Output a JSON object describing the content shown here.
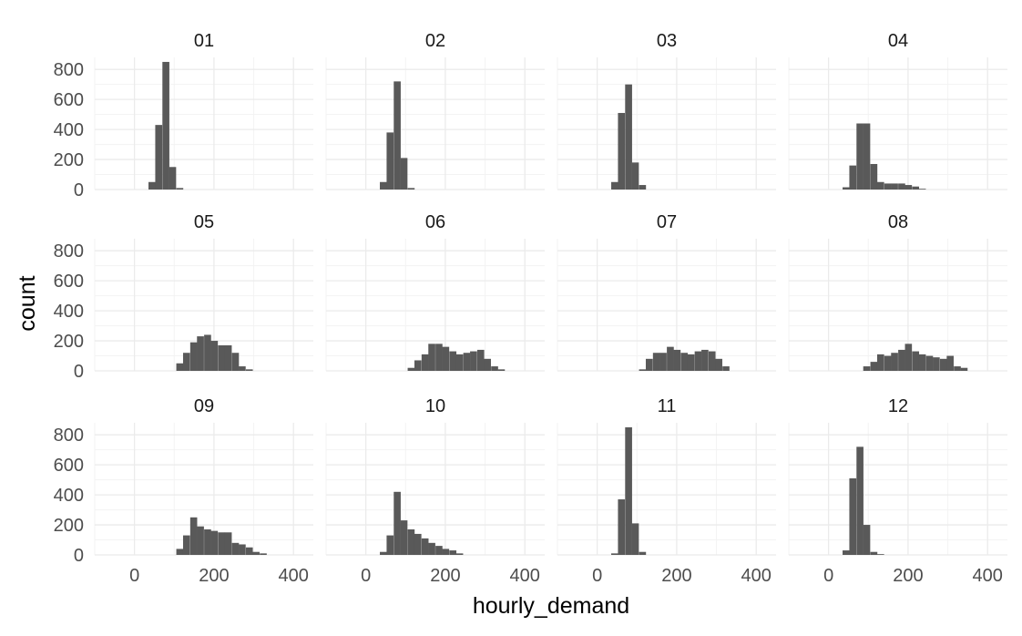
{
  "chart_data": {
    "type": "bar",
    "subtype": "faceted-histogram",
    "title": "",
    "xlabel": "hourly_demand",
    "ylabel": "count",
    "xlim": [
      -100,
      450
    ],
    "ylim": [
      0,
      880
    ],
    "x_ticks": [
      0,
      200,
      400
    ],
    "y_ticks": [
      0,
      200,
      400,
      600,
      800
    ],
    "bin_width": 17.5,
    "grid": true,
    "facets": [
      {
        "label": "01",
        "bins": [
          {
            "x": 44,
            "count": 50
          },
          {
            "x": 61,
            "count": 430
          },
          {
            "x": 79,
            "count": 850
          },
          {
            "x": 96,
            "count": 150
          },
          {
            "x": 114,
            "count": 10
          }
        ]
      },
      {
        "label": "02",
        "bins": [
          {
            "x": 44,
            "count": 50
          },
          {
            "x": 61,
            "count": 380
          },
          {
            "x": 79,
            "count": 720
          },
          {
            "x": 96,
            "count": 210
          },
          {
            "x": 114,
            "count": 10
          }
        ]
      },
      {
        "label": "03",
        "bins": [
          {
            "x": 44,
            "count": 50
          },
          {
            "x": 61,
            "count": 510
          },
          {
            "x": 79,
            "count": 700
          },
          {
            "x": 96,
            "count": 180
          },
          {
            "x": 114,
            "count": 30
          }
        ]
      },
      {
        "label": "04",
        "bins": [
          {
            "x": 44,
            "count": 15
          },
          {
            "x": 61,
            "count": 160
          },
          {
            "x": 79,
            "count": 440
          },
          {
            "x": 96,
            "count": 440
          },
          {
            "x": 114,
            "count": 170
          },
          {
            "x": 131,
            "count": 50
          },
          {
            "x": 149,
            "count": 40
          },
          {
            "x": 166,
            "count": 40
          },
          {
            "x": 184,
            "count": 40
          },
          {
            "x": 201,
            "count": 30
          },
          {
            "x": 219,
            "count": 20
          },
          {
            "x": 236,
            "count": 5
          }
        ]
      },
      {
        "label": "05",
        "bins": [
          {
            "x": 114,
            "count": 50
          },
          {
            "x": 131,
            "count": 120
          },
          {
            "x": 149,
            "count": 190
          },
          {
            "x": 166,
            "count": 230
          },
          {
            "x": 184,
            "count": 240
          },
          {
            "x": 201,
            "count": 200
          },
          {
            "x": 219,
            "count": 170
          },
          {
            "x": 236,
            "count": 170
          },
          {
            "x": 254,
            "count": 120
          },
          {
            "x": 271,
            "count": 30
          },
          {
            "x": 289,
            "count": 10
          }
        ]
      },
      {
        "label": "06",
        "bins": [
          {
            "x": 114,
            "count": 20
          },
          {
            "x": 131,
            "count": 70
          },
          {
            "x": 149,
            "count": 110
          },
          {
            "x": 166,
            "count": 180
          },
          {
            "x": 184,
            "count": 180
          },
          {
            "x": 201,
            "count": 160
          },
          {
            "x": 219,
            "count": 130
          },
          {
            "x": 236,
            "count": 110
          },
          {
            "x": 254,
            "count": 120
          },
          {
            "x": 271,
            "count": 130
          },
          {
            "x": 289,
            "count": 140
          },
          {
            "x": 306,
            "count": 80
          },
          {
            "x": 324,
            "count": 30
          },
          {
            "x": 341,
            "count": 10
          }
        ]
      },
      {
        "label": "07",
        "bins": [
          {
            "x": 114,
            "count": 10
          },
          {
            "x": 131,
            "count": 80
          },
          {
            "x": 149,
            "count": 120
          },
          {
            "x": 166,
            "count": 120
          },
          {
            "x": 184,
            "count": 160
          },
          {
            "x": 201,
            "count": 140
          },
          {
            "x": 219,
            "count": 120
          },
          {
            "x": 236,
            "count": 110
          },
          {
            "x": 254,
            "count": 130
          },
          {
            "x": 271,
            "count": 140
          },
          {
            "x": 289,
            "count": 130
          },
          {
            "x": 306,
            "count": 80
          },
          {
            "x": 324,
            "count": 30
          }
        ]
      },
      {
        "label": "08",
        "bins": [
          {
            "x": 96,
            "count": 30
          },
          {
            "x": 114,
            "count": 60
          },
          {
            "x": 131,
            "count": 110
          },
          {
            "x": 149,
            "count": 100
          },
          {
            "x": 166,
            "count": 120
          },
          {
            "x": 184,
            "count": 140
          },
          {
            "x": 201,
            "count": 180
          },
          {
            "x": 219,
            "count": 130
          },
          {
            "x": 236,
            "count": 110
          },
          {
            "x": 254,
            "count": 100
          },
          {
            "x": 271,
            "count": 90
          },
          {
            "x": 289,
            "count": 80
          },
          {
            "x": 306,
            "count": 100
          },
          {
            "x": 324,
            "count": 30
          },
          {
            "x": 341,
            "count": 20
          }
        ]
      },
      {
        "label": "09",
        "bins": [
          {
            "x": 114,
            "count": 40
          },
          {
            "x": 131,
            "count": 130
          },
          {
            "x": 149,
            "count": 250
          },
          {
            "x": 166,
            "count": 190
          },
          {
            "x": 184,
            "count": 170
          },
          {
            "x": 201,
            "count": 160
          },
          {
            "x": 219,
            "count": 150
          },
          {
            "x": 236,
            "count": 150
          },
          {
            "x": 254,
            "count": 80
          },
          {
            "x": 271,
            "count": 70
          },
          {
            "x": 289,
            "count": 50
          },
          {
            "x": 306,
            "count": 20
          },
          {
            "x": 324,
            "count": 10
          }
        ]
      },
      {
        "label": "10",
        "bins": [
          {
            "x": 44,
            "count": 20
          },
          {
            "x": 61,
            "count": 130
          },
          {
            "x": 79,
            "count": 420
          },
          {
            "x": 96,
            "count": 230
          },
          {
            "x": 114,
            "count": 170
          },
          {
            "x": 131,
            "count": 140
          },
          {
            "x": 149,
            "count": 110
          },
          {
            "x": 166,
            "count": 80
          },
          {
            "x": 184,
            "count": 60
          },
          {
            "x": 201,
            "count": 40
          },
          {
            "x": 219,
            "count": 30
          },
          {
            "x": 236,
            "count": 10
          }
        ]
      },
      {
        "label": "11",
        "bins": [
          {
            "x": 44,
            "count": 10
          },
          {
            "x": 61,
            "count": 370
          },
          {
            "x": 79,
            "count": 850
          },
          {
            "x": 96,
            "count": 210
          },
          {
            "x": 114,
            "count": 20
          }
        ]
      },
      {
        "label": "12",
        "bins": [
          {
            "x": 44,
            "count": 30
          },
          {
            "x": 61,
            "count": 510
          },
          {
            "x": 79,
            "count": 720
          },
          {
            "x": 96,
            "count": 200
          },
          {
            "x": 114,
            "count": 20
          },
          {
            "x": 131,
            "count": 5
          }
        ]
      }
    ]
  },
  "colors": {
    "bar": "#595959",
    "grid_major": "#ebebeb",
    "grid_minor": "#f3f3f3",
    "tick_text": "#4d4d4d",
    "strip_text": "#1a1a1a",
    "axis_title": "#000000"
  }
}
